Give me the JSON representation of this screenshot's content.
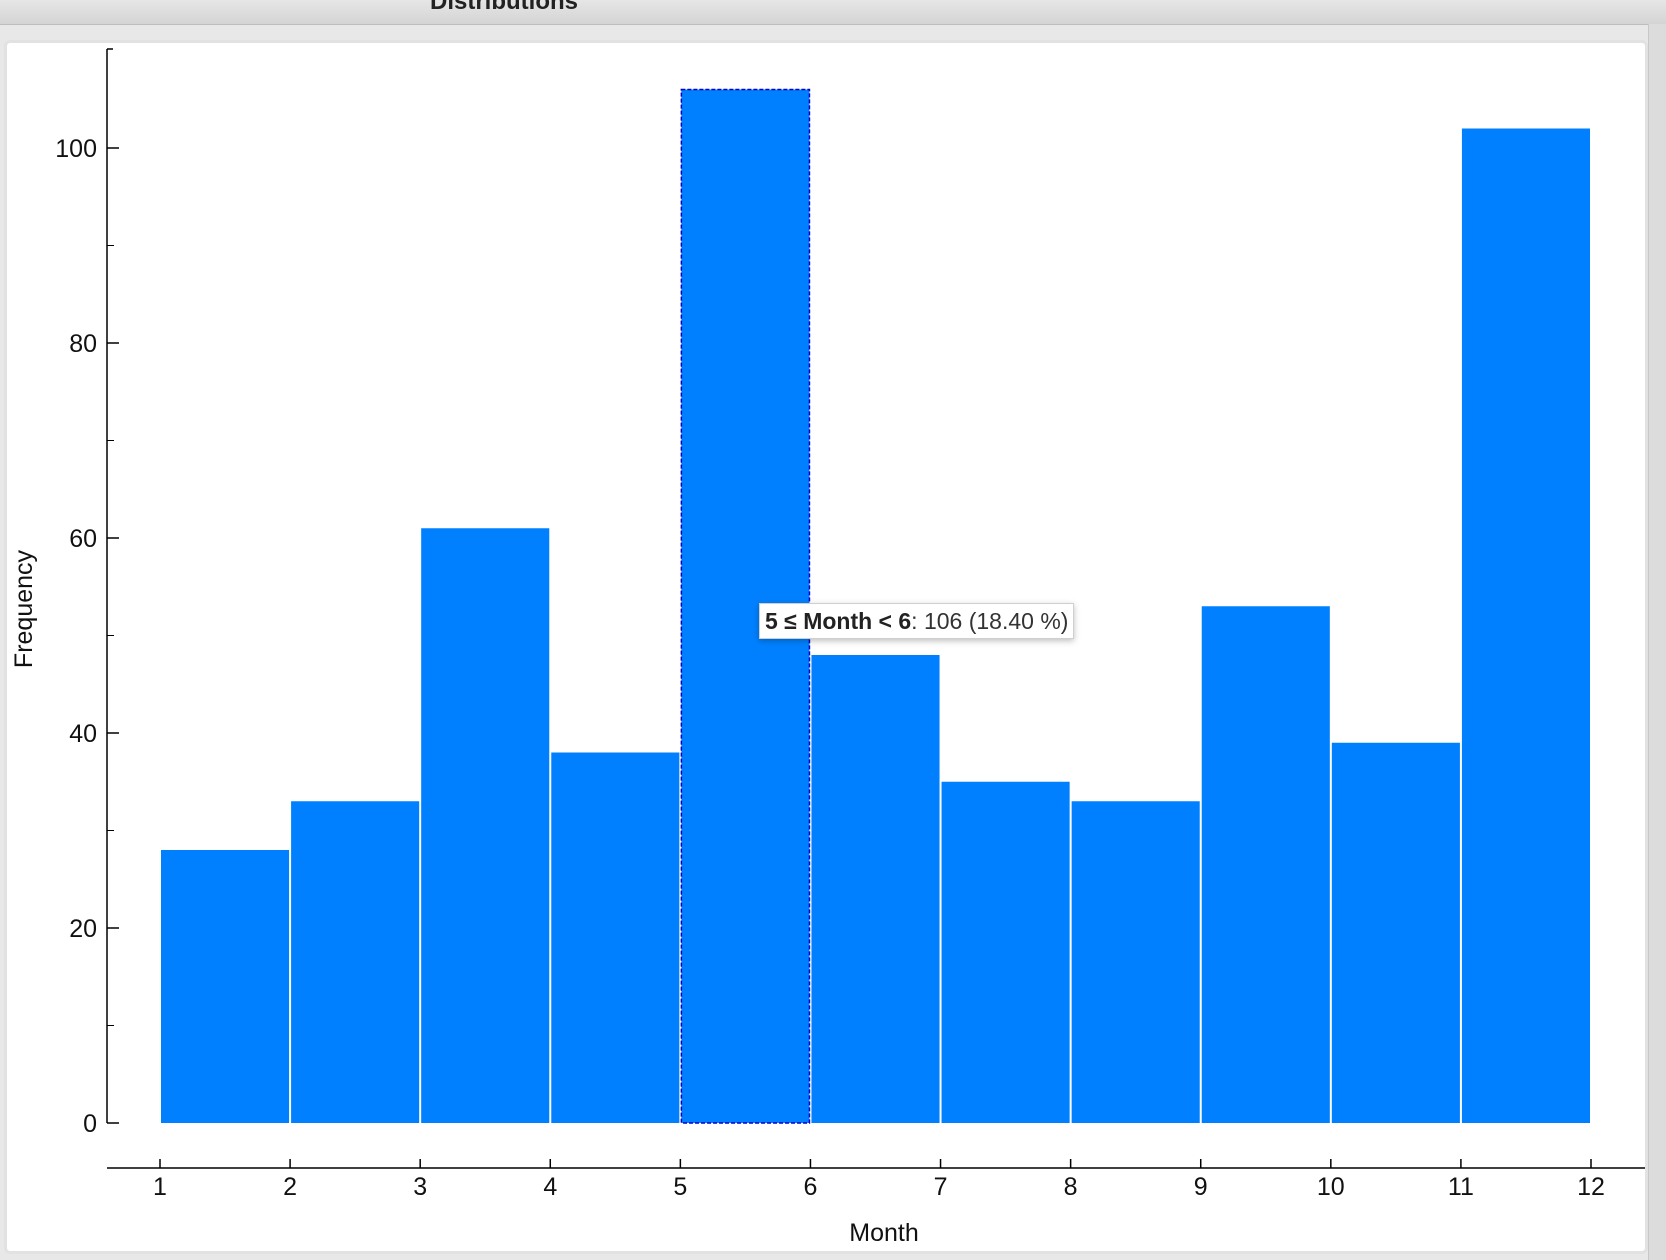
{
  "window": {
    "title": "Distributions"
  },
  "tooltip": {
    "condition": "5 ≤ Month < 6",
    "separator": ":",
    "value": "106 (18.40 %)"
  },
  "colors": {
    "bar": "#0080ff",
    "bar_highlight_border": "#0000cc",
    "axis": "#000000"
  },
  "chart_data": {
    "type": "bar",
    "histogram": true,
    "xlabel": "Month",
    "ylabel": "Frequency",
    "bins": [
      {
        "from": 1,
        "to": 2,
        "value": 28
      },
      {
        "from": 2,
        "to": 3,
        "value": 33
      },
      {
        "from": 3,
        "to": 4,
        "value": 61
      },
      {
        "from": 4,
        "to": 5,
        "value": 38
      },
      {
        "from": 5,
        "to": 6,
        "value": 106
      },
      {
        "from": 6,
        "to": 7,
        "value": 48
      },
      {
        "from": 7,
        "to": 8,
        "value": 35
      },
      {
        "from": 8,
        "to": 9,
        "value": 33
      },
      {
        "from": 9,
        "to": 10,
        "value": 53
      },
      {
        "from": 10,
        "to": 11,
        "value": 39
      },
      {
        "from": 11,
        "to": 12,
        "value": 102
      }
    ],
    "highlighted_bin": 4,
    "x_ticks": [
      1,
      2,
      3,
      4,
      5,
      6,
      7,
      8,
      9,
      10,
      11,
      12
    ],
    "y_ticks": [
      0,
      20,
      40,
      60,
      80,
      100
    ],
    "y_minor_step": 10,
    "xlim": [
      1,
      12
    ],
    "ylim": [
      0,
      110
    ],
    "grid": false
  }
}
